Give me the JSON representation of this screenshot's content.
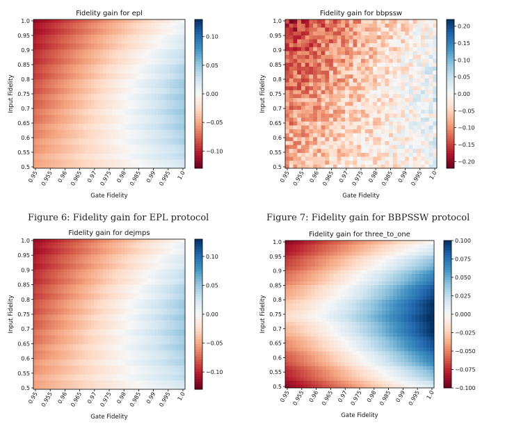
{
  "chart_data": [
    {
      "type": "heatmap",
      "title": "Fidelity gain for epl",
      "xlabel": "Gate Fidelity",
      "ylabel": "Input Fidelity",
      "x_tick_labels": [
        "0.95",
        "0.955",
        "0.96",
        "0.965",
        "0.97",
        "0.975",
        "0.98",
        "0.985",
        "0.99",
        "0.995",
        "1.0"
      ],
      "y_tick_labels": [
        "1.0",
        "0.95",
        "0.9",
        "0.85",
        "0.8",
        "0.75",
        "0.7",
        "0.65",
        "0.6",
        "0.55",
        "0.5"
      ],
      "xlim": [
        0.95,
        1.0
      ],
      "ylim": [
        0.5,
        1.0
      ],
      "colormap": "RdBu",
      "colorbar": {
        "range": [
          -0.13,
          0.13
        ],
        "tick_values": [
          0.1,
          0.05,
          0.0,
          -0.05,
          -0.1
        ],
        "tick_labels": [
          "0.10",
          "0.05",
          "0.00",
          "−0.05",
          "−0.10"
        ]
      },
      "pattern": "epl",
      "caption": "Figure 6: Fidelity gain for EPL protocol"
    },
    {
      "type": "heatmap",
      "title": "Fidelity gain for bbpssw",
      "xlabel": "Gate Fidelity",
      "ylabel": "Input Fidelity",
      "x_tick_labels": [
        "0.95",
        "0.955",
        "0.96",
        "0.965",
        "0.97",
        "0.975",
        "0.98",
        "0.985",
        "0.99",
        "0.995",
        "1.0"
      ],
      "y_tick_labels": [
        "1.0",
        "0.95",
        "0.9",
        "0.85",
        "0.8",
        "0.75",
        "0.7",
        "0.65",
        "0.6",
        "0.55",
        "0.5"
      ],
      "xlim": [
        0.95,
        1.0
      ],
      "ylim": [
        0.5,
        1.0
      ],
      "colormap": "RdBu",
      "colorbar": {
        "range": [
          -0.22,
          0.22
        ],
        "tick_values": [
          0.2,
          0.15,
          0.1,
          0.05,
          0.0,
          -0.05,
          -0.1,
          -0.15,
          -0.2
        ],
        "tick_labels": [
          "0.20",
          "0.15",
          "0.10",
          "0.05",
          "0.00",
          "−0.05",
          "−0.10",
          "−0.15",
          "−0.20"
        ]
      },
      "pattern": "bbpssw",
      "caption": "Figure 7: Fidelity gain for BBPSSW protocol"
    },
    {
      "type": "heatmap",
      "title": "Fidelity gain for dejmps",
      "xlabel": "Gate Fidelity",
      "ylabel": "Input Fidelity",
      "x_tick_labels": [
        "0.95",
        "0.955",
        "0.96",
        "0.965",
        "0.97",
        "0.975",
        "0.98",
        "0.985",
        "0.99",
        "0.995",
        "1.0"
      ],
      "y_tick_labels": [
        "1.0",
        "0.95",
        "0.9",
        "0.85",
        "0.8",
        "0.75",
        "0.7",
        "0.65",
        "0.6",
        "0.55",
        "0.5"
      ],
      "xlim": [
        0.95,
        1.0
      ],
      "ylim": [
        0.5,
        1.0
      ],
      "colormap": "RdBu",
      "colorbar": {
        "range": [
          -0.13,
          0.13
        ],
        "tick_values": [
          0.1,
          0.05,
          0.0,
          -0.05,
          -0.1
        ],
        "tick_labels": [
          "0.10",
          "0.05",
          "0.00",
          "−0.05",
          "−0.10"
        ]
      },
      "pattern": "dejmps",
      "caption": ""
    },
    {
      "type": "heatmap",
      "title": "Fidelity gain for three_to_one",
      "xlabel": "Gate Fidelity",
      "ylabel": "Input Fidelity",
      "x_tick_labels": [
        "0.95",
        "0.955",
        "0.96",
        "0.965",
        "0.97",
        "0.975",
        "0.98",
        "0.985",
        "0.99",
        "0.995",
        "1.0"
      ],
      "y_tick_labels": [
        "1.0",
        "0.95",
        "0.9",
        "0.85",
        "0.8",
        "0.75",
        "0.7",
        "0.65",
        "0.6",
        "0.55",
        "0.5"
      ],
      "xlim": [
        0.95,
        1.0
      ],
      "ylim": [
        0.5,
        1.0
      ],
      "colormap": "RdBu",
      "colorbar": {
        "range": [
          -0.1,
          0.1
        ],
        "tick_values": [
          0.1,
          0.075,
          0.05,
          0.025,
          0.0,
          -0.025,
          -0.05,
          -0.075,
          -0.1
        ],
        "tick_labels": [
          "0.100",
          "0.075",
          "0.050",
          "0.025",
          "0.000",
          "−0.025",
          "−0.050",
          "−0.075",
          "−0.100"
        ]
      },
      "pattern": "three_to_one",
      "caption": ""
    }
  ]
}
